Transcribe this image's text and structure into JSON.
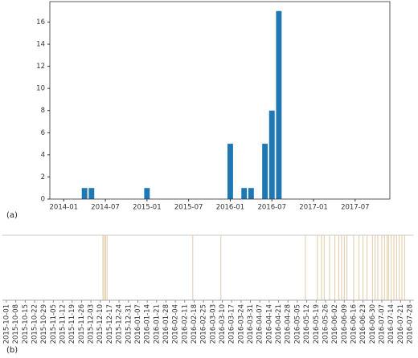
{
  "chart_data": [
    {
      "type": "bar",
      "caption": "(a)",
      "x": [
        "2014-04",
        "2014-05",
        "2015-01",
        "2016-01",
        "2016-03",
        "2016-04",
        "2016-06",
        "2016-07",
        "2016-08"
      ],
      "values": [
        1,
        1,
        1,
        5,
        1,
        1,
        5,
        8,
        17
      ],
      "color": "#1f77b4",
      "xlim": [
        "2013-11",
        "2017-12"
      ],
      "xticks": [
        "2014-01",
        "2014-07",
        "2015-01",
        "2015-07",
        "2016-01",
        "2016-07",
        "2017-01",
        "2017-07"
      ],
      "ylim": [
        0,
        17.85
      ],
      "yticks": [
        0,
        2,
        4,
        6,
        8,
        10,
        12,
        14,
        16
      ]
    },
    {
      "type": "event",
      "caption": "(b)",
      "x": [
        "2015-12-12",
        "2015-12-13",
        "2015-12-14",
        "2015-12-15",
        "2016-02-17",
        "2016-03-09",
        "2016-05-11",
        "2016-05-20",
        "2016-05-23",
        "2016-05-25",
        "2016-05-29",
        "2016-06-02",
        "2016-06-05",
        "2016-06-07",
        "2016-06-09",
        "2016-06-11",
        "2016-06-16",
        "2016-06-20",
        "2016-06-23",
        "2016-06-26",
        "2016-06-30",
        "2016-07-02",
        "2016-07-04",
        "2016-07-07",
        "2016-07-09",
        "2016-07-11",
        "2016-07-12",
        "2016-07-14",
        "2016-07-16",
        "2016-07-18",
        "2016-07-20",
        "2016-07-22",
        "2016-07-24"
      ],
      "color": "#e2c9a5",
      "xlim": [
        "2015-09-28",
        "2016-07-31"
      ],
      "xticks": [
        "2015-10-01",
        "2015-10-08",
        "2015-10-15",
        "2015-10-22",
        "2015-10-29",
        "2015-11-05",
        "2015-11-12",
        "2015-11-19",
        "2015-11-26",
        "2015-12-03",
        "2015-12-10",
        "2015-12-17",
        "2015-12-24",
        "2015-12-31",
        "2016-01-07",
        "2016-01-14",
        "2016-01-21",
        "2016-01-28",
        "2016-02-04",
        "2016-02-11",
        "2016-02-18",
        "2016-02-25",
        "2016-03-03",
        "2016-03-10",
        "2016-03-17",
        "2016-03-24",
        "2016-03-31",
        "2016-04-07",
        "2016-04-14",
        "2016-04-21",
        "2016-04-28",
        "2016-05-05",
        "2016-05-12",
        "2016-05-19",
        "2016-05-26",
        "2016-06-02",
        "2016-06-09",
        "2016-06-16",
        "2016-06-23",
        "2016-06-30",
        "2016-07-07",
        "2016-07-14",
        "2016-07-21",
        "2016-07-28"
      ]
    }
  ]
}
